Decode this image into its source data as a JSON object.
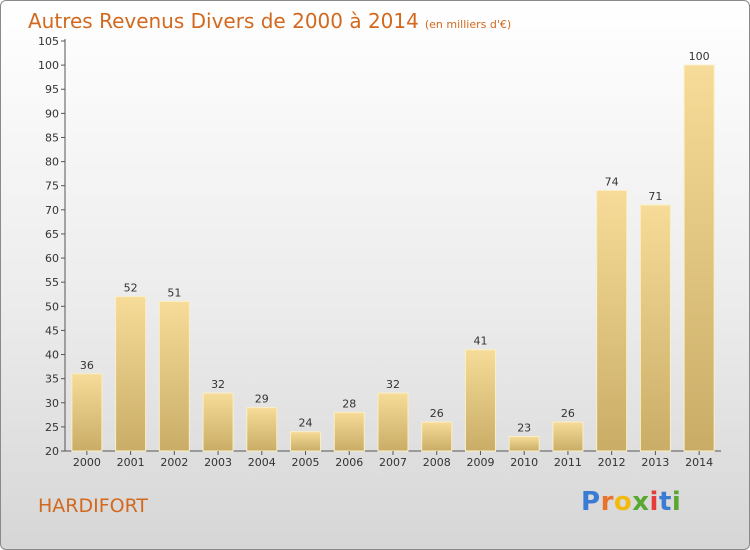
{
  "header": {
    "title": "Autres Revenus Divers de 2000 à 2014",
    "unit": "(en milliers d'€)"
  },
  "footer": {
    "location": "HARDIFORT",
    "logo_letters": [
      "P",
      "r",
      "o",
      "x",
      "i",
      "t",
      "i"
    ],
    "logo_colors": [
      "#3a7bd5",
      "#e8742c",
      "#f2b90f",
      "#5aa832",
      "#e53b3b",
      "#3a7bd5",
      "#5aa832"
    ]
  },
  "colors": {
    "bar_top": "#f6dc98",
    "bar_bottom": "#c9ad67",
    "axis": "#555555",
    "title": "#d2691e"
  },
  "chart_data": {
    "type": "bar",
    "categories": [
      "2000",
      "2001",
      "2002",
      "2003",
      "2004",
      "2005",
      "2006",
      "2007",
      "2008",
      "2009",
      "2010",
      "2011",
      "2012",
      "2013",
      "2014"
    ],
    "values": [
      36,
      52,
      51,
      32,
      29,
      24,
      28,
      32,
      26,
      41,
      23,
      26,
      74,
      71,
      100
    ],
    "ylim": [
      20,
      105
    ],
    "yticks": [
      20,
      25,
      30,
      35,
      40,
      45,
      50,
      55,
      60,
      65,
      70,
      75,
      80,
      85,
      90,
      95,
      100,
      105
    ],
    "title": "Autres Revenus Divers de 2000 à 2014",
    "xlabel": "",
    "ylabel": "",
    "grid": false
  }
}
